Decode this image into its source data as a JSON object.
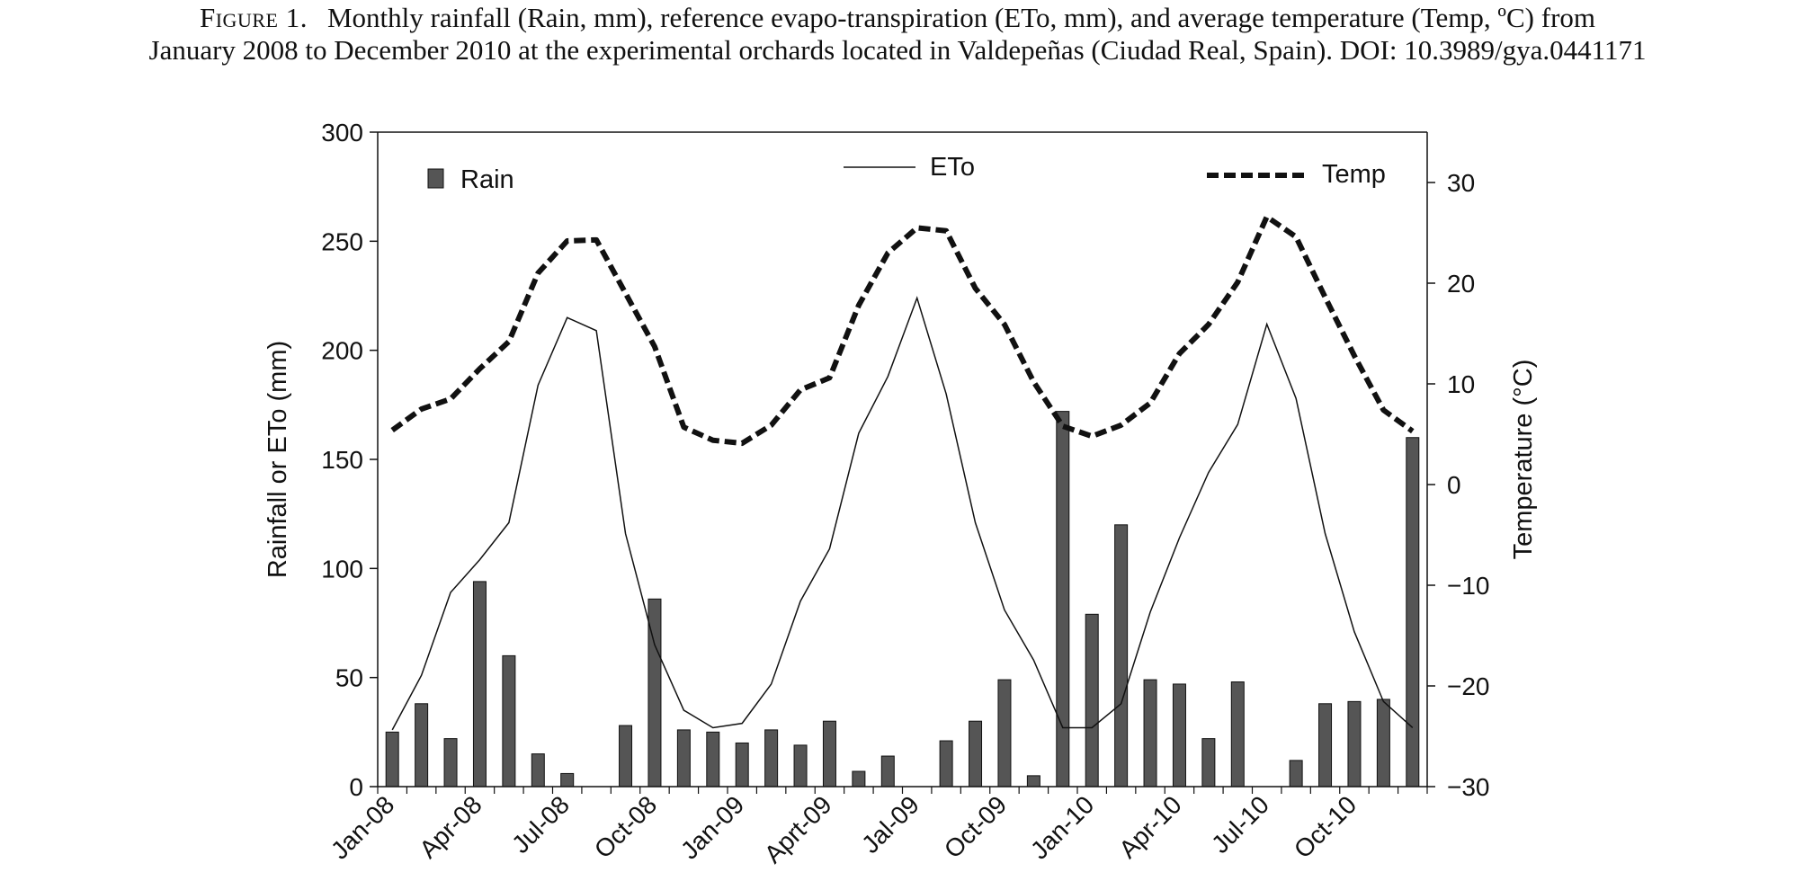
{
  "caption": {
    "figure_label": "Figure 1.",
    "line1": "Monthly rainfall (Rain, mm), reference evapo-transpiration (ETo, mm), and average temperature (Temp, ºC) from",
    "line2": "January 2008 to December 2010 at the experimental orchards located in Valdepeñas (Ciudad Real, Spain). DOI: 10.3989/gya.0441171"
  },
  "chart_data": {
    "type": "bar",
    "title": "",
    "ylabel": "Rainfall or ETo (mm)",
    "y2label": "Temperature (°C)",
    "ylim": [
      0,
      300
    ],
    "yticks": [
      0,
      50,
      100,
      150,
      200,
      250,
      300
    ],
    "y2lim": [
      -30,
      35
    ],
    "y2ticks": [
      -30,
      -20,
      -10,
      0,
      10,
      20,
      30
    ],
    "y2tick_labels": [
      "−30",
      "−20",
      "−10",
      "0",
      "10",
      "20",
      "30"
    ],
    "categories": [
      "Jan-08",
      "Feb-08",
      "Mar-08",
      "Apr-08",
      "May-08",
      "Jun-08",
      "Jul-08",
      "Aug-08",
      "Sep-08",
      "Oct-08",
      "Nov-08",
      "Dec-08",
      "Jan-09",
      "Feb-09",
      "Mar-09",
      "Apr-09",
      "May-09",
      "Jun-09",
      "Jul-09",
      "Aug-09",
      "Sep-09",
      "Oct-09",
      "Nov-09",
      "Dec-09",
      "Jan-10",
      "Feb-10",
      "Mar-10",
      "Apr-10",
      "May-10",
      "Jun-10",
      "Jul-10",
      "Aug-10",
      "Sep-10",
      "Oct-10",
      "Nov-10",
      "Dec-10"
    ],
    "tick_labels": [
      {
        "index": 0,
        "label": "Jan-08"
      },
      {
        "index": 3,
        "label": "Apr-08"
      },
      {
        "index": 6,
        "label": "Jul-08"
      },
      {
        "index": 9,
        "label": "Oct-08"
      },
      {
        "index": 12,
        "label": "Jan-09"
      },
      {
        "index": 15,
        "label": "Aprt-09"
      },
      {
        "index": 18,
        "label": "Jal-09"
      },
      {
        "index": 21,
        "label": "Oct-09"
      },
      {
        "index": 24,
        "label": "Jan-10"
      },
      {
        "index": 27,
        "label": "Apr-10"
      },
      {
        "index": 30,
        "label": "Jul-10"
      },
      {
        "index": 33,
        "label": "Oct-10"
      }
    ],
    "series": [
      {
        "name": "Rain",
        "type": "bar",
        "axis": "left",
        "color": "#555555",
        "values": [
          25,
          38,
          22,
          94,
          60,
          15,
          6,
          0,
          28,
          86,
          26,
          25,
          20,
          26,
          19,
          30,
          7,
          14,
          0,
          21,
          30,
          49,
          5,
          172,
          79,
          120,
          49,
          47,
          22,
          48,
          0,
          12,
          38,
          39,
          40,
          160
        ]
      },
      {
        "name": "ETo",
        "type": "line",
        "axis": "left",
        "color": "#111111",
        "style": "solid",
        "values": [
          26,
          51,
          89,
          104,
          121,
          184,
          215,
          209,
          116,
          65,
          35,
          27,
          29,
          47,
          85,
          109,
          162,
          188,
          224,
          180,
          121,
          81,
          58,
          27,
          27,
          38,
          80,
          114,
          144,
          166,
          212,
          178,
          116,
          71,
          39,
          27
        ]
      },
      {
        "name": "Temp",
        "type": "line",
        "axis": "right",
        "color": "#111111",
        "style": "dashed",
        "values": [
          5.4,
          7.5,
          8.5,
          11.5,
          14.2,
          21.0,
          24.2,
          24.3,
          19.0,
          13.7,
          5.7,
          4.4,
          4.1,
          5.9,
          9.4,
          10.6,
          17.8,
          23.0,
          25.5,
          25.2,
          19.5,
          15.9,
          10.2,
          5.8,
          4.8,
          5.9,
          8.1,
          13.0,
          15.9,
          20.1,
          26.6,
          24.6,
          18.6,
          12.8,
          7.4,
          5.3
        ]
      }
    ],
    "legend": {
      "placement": "top",
      "items": [
        "Rain",
        "ETo",
        "Temp"
      ]
    },
    "grid": false
  }
}
